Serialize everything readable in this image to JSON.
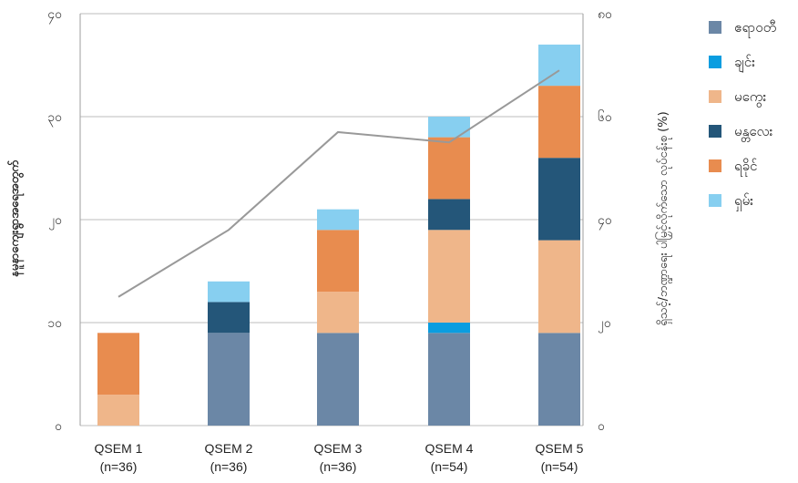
{
  "chart_data": {
    "type": "bar",
    "stacked": true,
    "categories": [
      [
        "QSEM 1",
        "(n=36)"
      ],
      [
        "QSEM 2",
        "(n=36)"
      ],
      [
        "QSEM 3",
        "(n=36)"
      ],
      [
        "QSEM 4",
        "(n=54)"
      ],
      [
        "QSEM 5",
        "(n=54)"
      ]
    ],
    "ylabel": "နမူနာကျေးရွာအရေအတွက်",
    "y2label": "ရှိသင့်/ဘဏ္ဍာရေး ပါမြှင့်လိုက်သော လုပ်ငန်းစု (%)",
    "ylim": [
      0,
      40
    ],
    "y2lim": [
      0,
      80
    ],
    "yticks": [
      "၀",
      "၁၀",
      "၂၀",
      "၃၀",
      "၄၀"
    ],
    "y2ticks": [
      "၀",
      "၂၀",
      "၄၀",
      "၆၀",
      "၈၀"
    ],
    "grid": true,
    "legend_position": "right",
    "series": [
      {
        "name": "ဧရာဝတီ",
        "color": "#6b87a6",
        "values": [
          0,
          9,
          9,
          9,
          9
        ]
      },
      {
        "name": "ချင်း",
        "color": "#0a9de0",
        "values": [
          0,
          0,
          0,
          1,
          0
        ]
      },
      {
        "name": "မကွေး",
        "color": "#efb68a",
        "values": [
          3,
          0,
          4,
          9,
          9
        ]
      },
      {
        "name": "မန္တလေး",
        "color": "#245679",
        "values": [
          0,
          3,
          0,
          3,
          8
        ]
      },
      {
        "name": "ရခိုင်",
        "color": "#e88c4f",
        "values": [
          6,
          0,
          6,
          6,
          7
        ]
      },
      {
        "name": "ရှမ်း",
        "color": "#87cff0",
        "values": [
          0,
          2,
          2,
          2,
          4
        ]
      }
    ],
    "line": {
      "color": "#999999",
      "axis": "right",
      "values": [
        25,
        38,
        57,
        55,
        69
      ]
    }
  }
}
